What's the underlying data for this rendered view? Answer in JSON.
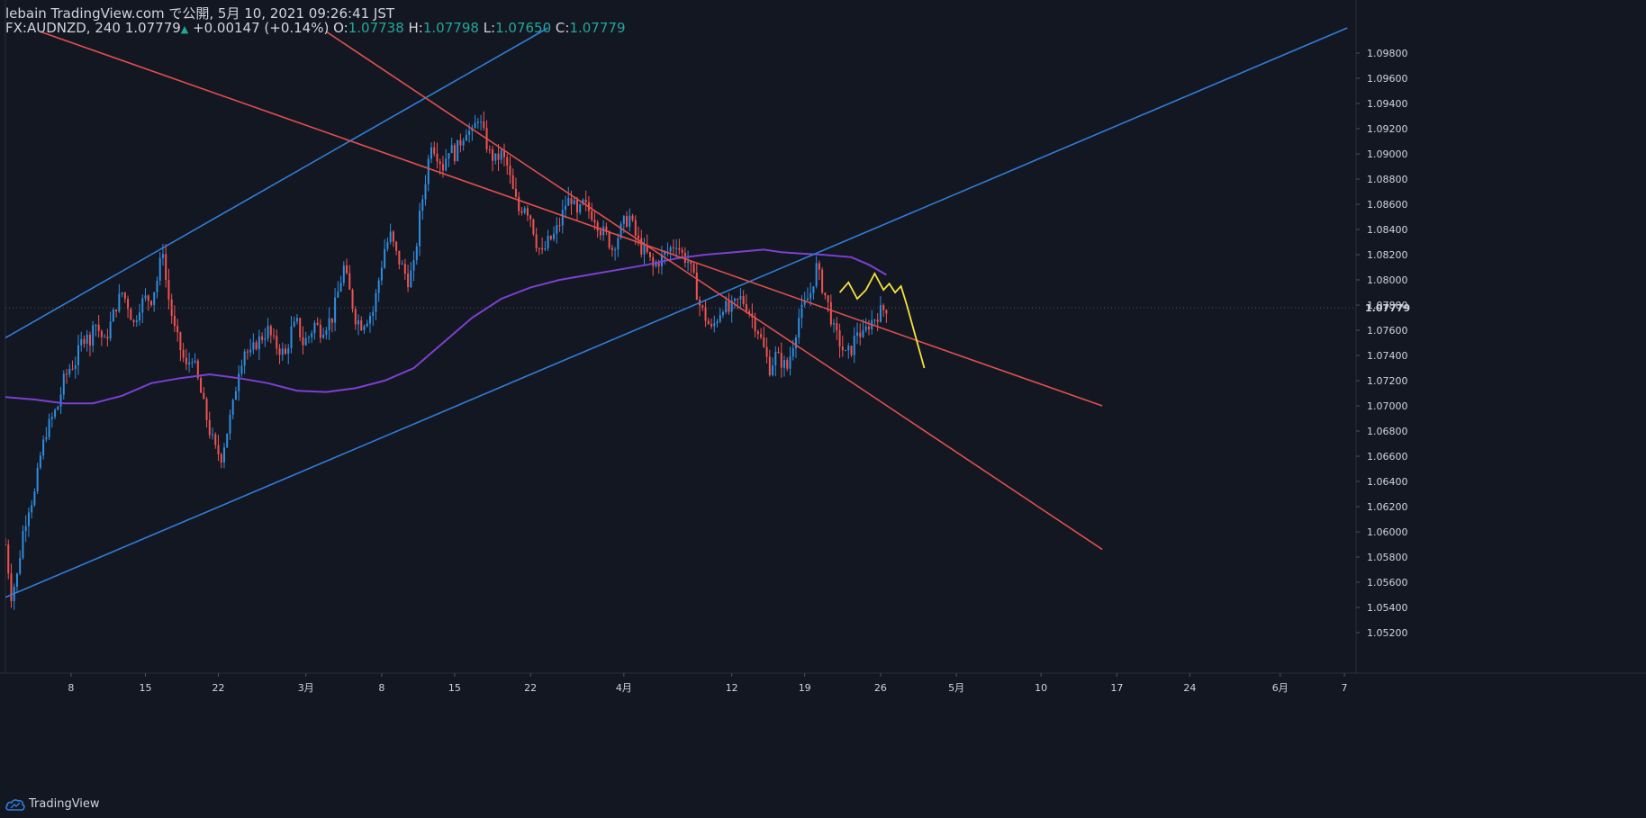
{
  "header": {
    "line1": "lebain TradingView.com で公開, 5月 10, 2021 09:26:41 JST",
    "symbol": "FX:AUDNZD, 240",
    "last": "1.07779",
    "change_arrow": "▲",
    "change": "+0.00147 (+0.14%)",
    "o_label": "O:",
    "o_val": "1.07738",
    "h_label": "H:",
    "h_val": "1.07798",
    "l_label": "L:",
    "l_val": "1.07650",
    "c_label": "C:",
    "c_val": "1.07779"
  },
  "footer": {
    "brand": "TradingView",
    "icon": "tradingview-cloud-icon"
  },
  "colors": {
    "background": "#131722",
    "up": "#2f8ddf",
    "down": "#ef5350",
    "ma": "#7e3fd1",
    "channel_blue": "#2f7ed8",
    "channel_red": "#e0504d",
    "projection": "#f5e33b",
    "axis_text": "#d1d4dc"
  },
  "chart_data": {
    "type": "candlestick",
    "symbol": "FX:AUDNZD",
    "timeframe": "240",
    "ylim": [
      1.0505,
      1.0995
    ],
    "y_ticks": [
      "1.05200",
      "1.05400",
      "1.05600",
      "1.05800",
      "1.06000",
      "1.06200",
      "1.06400",
      "1.06600",
      "1.06800",
      "1.07000",
      "1.07200",
      "1.07400",
      "1.07600",
      "1.07800",
      "1.08000",
      "1.08200",
      "1.08400",
      "1.08600",
      "1.08800",
      "1.09000",
      "1.09200",
      "1.09400",
      "1.09600",
      "1.09800"
    ],
    "y_tick_values": [
      1.052,
      1.054,
      1.056,
      1.058,
      1.06,
      1.062,
      1.064,
      1.066,
      1.068,
      1.07,
      1.072,
      1.074,
      1.076,
      1.078,
      1.08,
      1.082,
      1.084,
      1.086,
      1.088,
      1.09,
      1.092,
      1.094,
      1.096,
      1.098
    ],
    "x_ticks": [
      "8",
      "15",
      "22",
      "3月",
      "8",
      "15",
      "22",
      "4月",
      "12",
      "19",
      "26",
      "5月",
      "10",
      "17",
      "24",
      "6月",
      "7"
    ],
    "x_tick_slots": [
      22.5,
      48,
      73,
      103,
      129,
      154,
      180,
      212,
      249,
      274,
      300,
      326,
      355,
      381,
      406,
      437,
      459
    ],
    "x_max": 463,
    "last_price": "1.07779",
    "close_path": [
      [
        0,
        1.059
      ],
      [
        2,
        1.055
      ],
      [
        4,
        1.0565
      ],
      [
        6,
        1.06
      ],
      [
        8,
        1.062
      ],
      [
        10,
        1.063
      ],
      [
        12,
        1.066
      ],
      [
        14,
        1.068
      ],
      [
        16,
        1.069
      ],
      [
        18,
        1.07
      ],
      [
        20,
        1.072
      ],
      [
        22,
        1.073
      ],
      [
        24,
        1.0735
      ],
      [
        26,
        1.075
      ],
      [
        28,
        1.076
      ],
      [
        29,
        1.0745
      ],
      [
        30,
        1.077
      ],
      [
        32,
        1.076
      ],
      [
        34,
        1.075
      ],
      [
        36,
        1.0765
      ],
      [
        38,
        1.078
      ],
      [
        40,
        1.079
      ],
      [
        42,
        1.078
      ],
      [
        44,
        1.0765
      ],
      [
        46,
        1.078
      ],
      [
        48,
        1.0785
      ],
      [
        50,
        1.0785
      ],
      [
        52,
        1.08
      ],
      [
        54,
        1.0825
      ],
      [
        55,
        1.08
      ],
      [
        56,
        1.0785
      ],
      [
        58,
        1.076
      ],
      [
        60,
        1.0745
      ],
      [
        62,
        1.073
      ],
      [
        64,
        1.074
      ],
      [
        66,
        1.072
      ],
      [
        68,
        1.07
      ],
      [
        70,
        1.068
      ],
      [
        72,
        1.0665
      ],
      [
        74,
        1.066
      ],
      [
        76,
        1.068
      ],
      [
        78,
        1.07
      ],
      [
        80,
        1.073
      ],
      [
        82,
        1.0745
      ],
      [
        84,
        1.074
      ],
      [
        86,
        1.075
      ],
      [
        88,
        1.0755
      ],
      [
        90,
        1.076
      ],
      [
        92,
        1.075
      ],
      [
        94,
        1.0745
      ],
      [
        96,
        1.074
      ],
      [
        98,
        1.076
      ],
      [
        100,
        1.0765
      ],
      [
        102,
        1.075
      ],
      [
        104,
        1.0755
      ],
      [
        106,
        1.0765
      ],
      [
        108,
        1.076
      ],
      [
        110,
        1.0765
      ],
      [
        112,
        1.077
      ],
      [
        114,
        1.079
      ],
      [
        116,
        1.081
      ],
      [
        118,
        1.079
      ],
      [
        120,
        1.077
      ],
      [
        122,
        1.0765
      ],
      [
        124,
        1.077
      ],
      [
        126,
        1.0775
      ],
      [
        128,
        1.08
      ],
      [
        130,
        1.0825
      ],
      [
        132,
        1.0835
      ],
      [
        134,
        1.082
      ],
      [
        136,
        1.081
      ],
      [
        138,
        1.08
      ],
      [
        140,
        1.081
      ],
      [
        142,
        1.085
      ],
      [
        144,
        1.088
      ],
      [
        146,
        1.091
      ],
      [
        148,
        1.09
      ],
      [
        150,
        1.089
      ],
      [
        152,
        1.0905
      ],
      [
        154,
        1.09
      ],
      [
        156,
        1.091
      ],
      [
        158,
        1.092
      ],
      [
        160,
        1.0915
      ],
      [
        162,
        1.093
      ],
      [
        164,
        1.0915
      ],
      [
        166,
        1.09
      ],
      [
        168,
        1.0895
      ],
      [
        170,
        1.09
      ],
      [
        172,
        1.089
      ],
      [
        174,
        1.087
      ],
      [
        176,
        1.0855
      ],
      [
        178,
        1.086
      ],
      [
        180,
        1.085
      ],
      [
        182,
        1.083
      ],
      [
        184,
        1.082
      ],
      [
        186,
        1.083
      ],
      [
        188,
        1.0835
      ],
      [
        190,
        1.0845
      ],
      [
        192,
        1.086
      ],
      [
        194,
        1.0865
      ],
      [
        196,
        1.085
      ],
      [
        198,
        1.086
      ],
      [
        200,
        1.0855
      ],
      [
        202,
        1.085
      ],
      [
        204,
        1.084
      ],
      [
        206,
        1.0835
      ],
      [
        208,
        1.0825
      ],
      [
        210,
        1.0835
      ],
      [
        212,
        1.0845
      ],
      [
        214,
        1.085
      ],
      [
        216,
        1.0835
      ],
      [
        218,
        1.0825
      ],
      [
        220,
        1.082
      ],
      [
        222,
        1.081
      ],
      [
        224,
        1.0815
      ],
      [
        226,
        1.082
      ],
      [
        228,
        1.0825
      ],
      [
        230,
        1.083
      ],
      [
        232,
        1.082
      ],
      [
        234,
        1.0815
      ],
      [
        236,
        1.08
      ],
      [
        238,
        1.078
      ],
      [
        240,
        1.077
      ],
      [
        242,
        1.076
      ],
      [
        244,
        1.077
      ],
      [
        246,
        1.078
      ],
      [
        248,
        1.0775
      ],
      [
        250,
        1.078
      ],
      [
        252,
        1.0785
      ],
      [
        254,
        1.078
      ],
      [
        256,
        1.077
      ],
      [
        258,
        1.076
      ],
      [
        260,
        1.0745
      ],
      [
        262,
        1.073
      ],
      [
        264,
        1.074
      ],
      [
        266,
        1.0735
      ],
      [
        268,
        1.073
      ],
      [
        270,
        1.075
      ],
      [
        272,
        1.077
      ],
      [
        274,
        1.078
      ],
      [
        276,
        1.079
      ],
      [
        278,
        1.081
      ],
      [
        280,
        1.0795
      ],
      [
        282,
        1.078
      ],
      [
        284,
        1.076
      ],
      [
        286,
        1.075
      ],
      [
        288,
        1.074
      ],
      [
        290,
        1.0745
      ],
      [
        292,
        1.076
      ],
      [
        294,
        1.0755
      ],
      [
        296,
        1.0765
      ],
      [
        298,
        1.077
      ],
      [
        300,
        1.0775
      ],
      [
        302,
        1.07779
      ]
    ],
    "sma_path": [
      [
        0,
        1.0707
      ],
      [
        10,
        1.0705
      ],
      [
        20,
        1.0702
      ],
      [
        30,
        1.0702
      ],
      [
        40,
        1.0708
      ],
      [
        50,
        1.0718
      ],
      [
        60,
        1.0722
      ],
      [
        70,
        1.0725
      ],
      [
        80,
        1.0722
      ],
      [
        90,
        1.0718
      ],
      [
        100,
        1.0712
      ],
      [
        110,
        1.0711
      ],
      [
        120,
        1.0714
      ],
      [
        130,
        1.072
      ],
      [
        140,
        1.073
      ],
      [
        150,
        1.075
      ],
      [
        160,
        1.077
      ],
      [
        170,
        1.0785
      ],
      [
        180,
        1.0794
      ],
      [
        190,
        1.08
      ],
      [
        200,
        1.0804
      ],
      [
        210,
        1.0808
      ],
      [
        220,
        1.0812
      ],
      [
        230,
        1.0817
      ],
      [
        240,
        1.082
      ],
      [
        250,
        1.0822
      ],
      [
        260,
        1.0824
      ],
      [
        266,
        1.0822
      ],
      [
        272,
        1.0821
      ],
      [
        280,
        1.082
      ],
      [
        290,
        1.0818
      ],
      [
        296,
        1.0812
      ],
      [
        302,
        1.0804
      ]
    ],
    "trendlines": [
      {
        "color": "blue",
        "points": [
          [
            0,
            1.0754
          ],
          [
            186,
            1.1
          ]
        ]
      },
      {
        "color": "blue",
        "points": [
          [
            0,
            1.0548
          ],
          [
            460,
            1.1
          ]
        ]
      },
      {
        "color": "red",
        "points": [
          [
            12,
            1.0997
          ],
          [
            376,
            1.07
          ]
        ]
      },
      {
        "color": "red",
        "points": [
          [
            110,
            1.0997
          ],
          [
            376,
            1.0586
          ]
        ]
      }
    ],
    "projection": [
      [
        286,
        1.079
      ],
      [
        289,
        1.0798
      ],
      [
        292,
        1.0785
      ],
      [
        295,
        1.0792
      ],
      [
        298,
        1.0805
      ],
      [
        301,
        1.0792
      ],
      [
        303,
        1.0797
      ],
      [
        305,
        1.079
      ],
      [
        307,
        1.0795
      ],
      [
        309,
        1.078
      ],
      [
        315,
        1.073
      ]
    ],
    "grid": false,
    "legend": "none"
  }
}
